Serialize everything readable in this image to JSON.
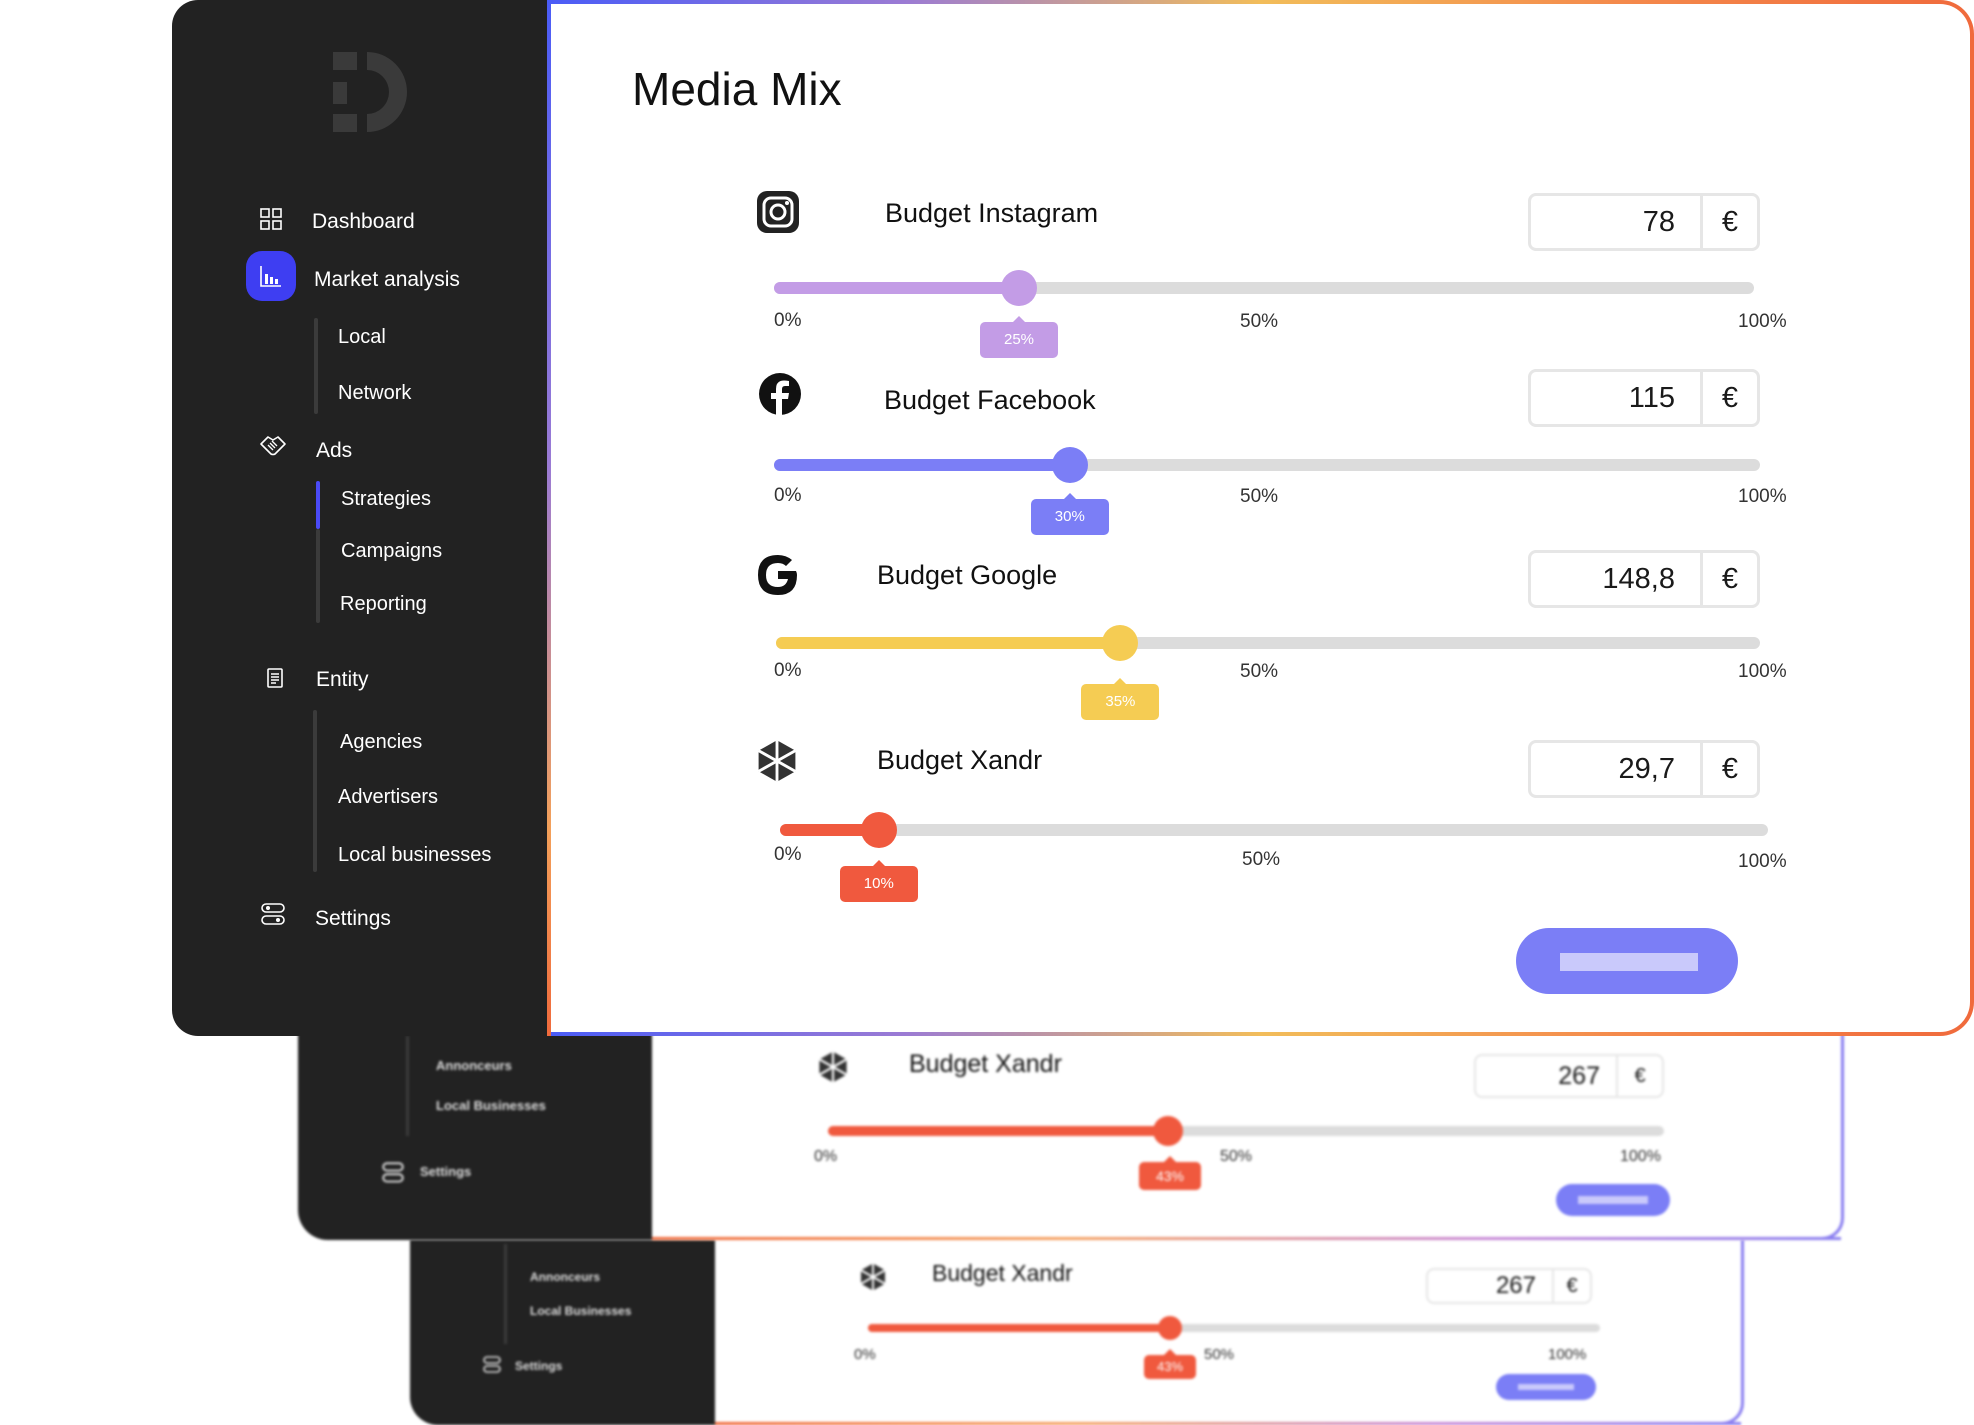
{
  "sidebar": {
    "items": [
      {
        "label": "Dashboard",
        "icon": "dashboard-icon"
      },
      {
        "label": "Market analysis",
        "icon": "chart-icon",
        "active": true,
        "children": [
          "Local",
          "Network"
        ]
      },
      {
        "label": "Ads",
        "icon": "handshake-icon",
        "children": [
          "Strategies",
          "Campaigns",
          "Reporting"
        ],
        "active_child": "Strategies"
      },
      {
        "label": "Entity",
        "icon": "document-icon",
        "children": [
          "Agencies",
          "Advertisers",
          "Local businesses"
        ]
      },
      {
        "label": "Settings",
        "icon": "toggle-icon"
      }
    ]
  },
  "main": {
    "title": "Media Mix",
    "rows": [
      {
        "label": "Budget Instagram",
        "icon": "instagram-icon",
        "value": "78",
        "currency": "€",
        "percent": 0.25,
        "percent_label": "25%",
        "color": "#c39ce6"
      },
      {
        "label": "Budget Facebook",
        "icon": "facebook-icon",
        "value": "115",
        "currency": "€",
        "percent": 0.3,
        "percent_label": "30%",
        "color": "#7b7ef6"
      },
      {
        "label": "Budget Google",
        "icon": "google-icon",
        "value": "148,8",
        "currency": "€",
        "percent": 0.35,
        "percent_label": "35%",
        "color": "#f5cc53"
      },
      {
        "label": "Budget Xandr",
        "icon": "xandr-icon",
        "value": "29,7",
        "currency": "€",
        "percent": 0.1,
        "percent_label": "10%",
        "color": "#f0593e"
      }
    ],
    "scale_labels": {
      "min": "0%",
      "mid": "50%",
      "max": "100%"
    },
    "confirm_color": "#7b7ef6"
  },
  "stack_cards": [
    {
      "sidebar_items": [
        "Annonceurs",
        "Local Businesses"
      ],
      "settings_label": "Settings",
      "row_label": "Budget Xandr",
      "value": "267",
      "currency": "€",
      "percent": 0.43,
      "percent_label": "43%",
      "color": "#f0593e"
    },
    {
      "sidebar_items": [
        "Annonceurs",
        "Local Businesses"
      ],
      "settings_label": "Settings",
      "row_label": "Budget Xandr",
      "value": "267",
      "currency": "€",
      "percent": 0.43,
      "percent_label": "43%",
      "color": "#f0593e"
    }
  ]
}
